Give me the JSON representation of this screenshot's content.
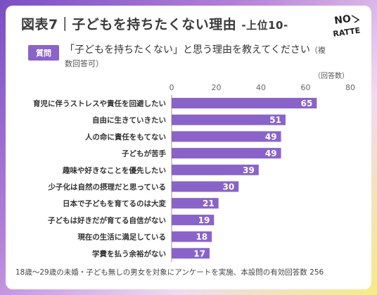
{
  "header": {
    "title": "図表7｜子どもを持ちたくない理由",
    "subtitle": "-上位10-",
    "logo_text": "NO RATTE"
  },
  "question": {
    "badge": "質問",
    "text": "「子どもを持ちたくない」と思う理由を教えてください",
    "note": "（複数回答可）"
  },
  "footnote": "18歳～29歳の未婚・子ども無しの男女を対象にアンケートを実施、本設問の有効回答数 256",
  "chart_data": {
    "type": "bar",
    "orientation": "horizontal",
    "unit_label": "（回答数）",
    "categories": [
      "育児に伴うストレスや責任を回避したい",
      "自由に生きていきたい",
      "人の命に責任をもてない",
      "子どもが苦手",
      "趣味や好きなことを優先したい",
      "少子化は自然の摂理だと思っている",
      "日本で子どもを育てるのは大変",
      "子どもは好きだが育てる自信がない",
      "現在の生活に満足している",
      "学費を払う余裕がない"
    ],
    "values": [
      65,
      51,
      49,
      49,
      39,
      30,
      21,
      19,
      18,
      17
    ],
    "xlim": [
      0,
      80
    ],
    "xticks": [
      0,
      20,
      40,
      60,
      80
    ],
    "bar_color": "#8a63c9",
    "label_color": "#ffffff",
    "grid": false
  }
}
